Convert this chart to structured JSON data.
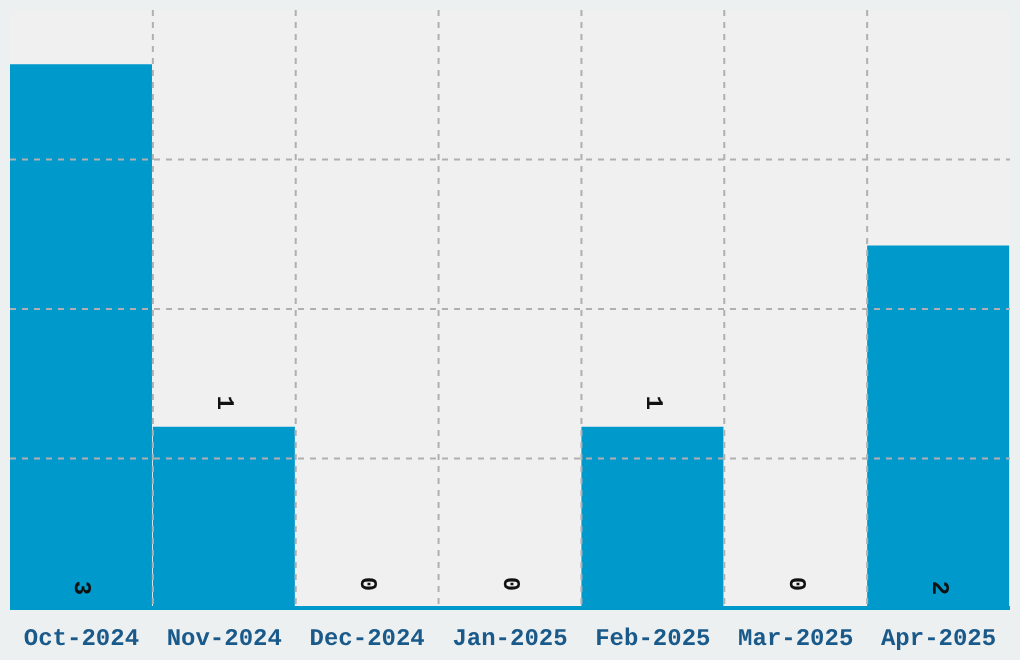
{
  "chart_data": {
    "type": "bar",
    "categories": [
      "Oct-2024",
      "Nov-2024",
      "Dec-2024",
      "Jan-2025",
      "Feb-2025",
      "Mar-2025",
      "Apr-2025"
    ],
    "values": [
      3,
      1,
      0,
      0,
      1,
      0,
      2
    ],
    "color": "#0099cc",
    "ylim": [
      0,
      3.3
    ],
    "grid": true,
    "tick_labels": "x",
    "data_labels": true
  }
}
